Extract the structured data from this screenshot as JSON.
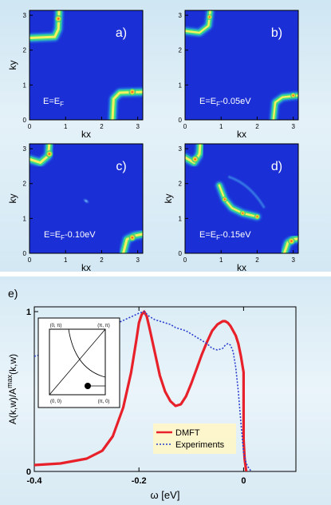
{
  "colors": {
    "panel_fill": "#1a2fd6",
    "dmft_line": "#e8202a",
    "exp_line": "#2b3fd0"
  },
  "chart_data": [
    {
      "type": "heatmap",
      "panel_label": "a)",
      "energy_label": {
        "base": "E=E",
        "sub": "F",
        "rest": ""
      },
      "xlabel": "kx",
      "ylabel": "ky",
      "xlim": [
        0,
        3.14
      ],
      "ylim": [
        0,
        3.14
      ],
      "xticks": [
        "0",
        "1",
        "2",
        "3"
      ],
      "yticks": [
        "0",
        "1",
        "2",
        "3"
      ]
    },
    {
      "type": "heatmap",
      "panel_label": "b)",
      "energy_label": {
        "base": "E=E",
        "sub": "F",
        "rest": "-0.05eV"
      },
      "xlabel": "kx",
      "ylabel": "",
      "xlim": [
        0,
        3.14
      ],
      "ylim": [
        0,
        3.14
      ],
      "xticks": [
        "0",
        "1",
        "2",
        "3"
      ],
      "yticks": [
        "0",
        "1",
        "2",
        "3"
      ]
    },
    {
      "type": "heatmap",
      "panel_label": "c)",
      "energy_label": {
        "base": "E=E",
        "sub": "F",
        "rest": "-0.10eV"
      },
      "xlabel": "kx",
      "ylabel": "ky",
      "xlim": [
        0,
        3.14
      ],
      "ylim": [
        0,
        3.14
      ],
      "xticks": [
        "0",
        "1",
        "2",
        "3"
      ],
      "yticks": [
        "0",
        "1",
        "2",
        "3"
      ]
    },
    {
      "type": "heatmap",
      "panel_label": "d)",
      "energy_label": {
        "base": "E=E",
        "sub": "F",
        "rest": "-0.15eV"
      },
      "xlabel": "kx",
      "ylabel": "ky",
      "xlim": [
        0,
        3.14
      ],
      "ylim": [
        0,
        3.14
      ],
      "xticks": [
        "0",
        "1",
        "2",
        "3"
      ],
      "yticks": [
        "0",
        "1",
        "2",
        "3"
      ]
    },
    {
      "type": "line",
      "panel_label": "e)",
      "xlabel": "ω [eV]",
      "ylabel": {
        "base": "A(k,w)/A",
        "sup": "max",
        "rest": "(k,w)"
      },
      "xlim": [
        -0.4,
        0.1
      ],
      "ylim": [
        0,
        1
      ],
      "xticks": [
        -0.4,
        -0.2,
        0
      ],
      "xtick_labels": [
        "-0.4",
        "-0.2",
        "0"
      ],
      "yticks": [
        0,
        1
      ],
      "ytick_labels": [
        "0",
        "1"
      ],
      "legend_position": "bottom-right",
      "series": [
        {
          "name": "DMFT",
          "style": "solid",
          "x": [
            -0.4,
            -0.35,
            -0.3,
            -0.27,
            -0.25,
            -0.23,
            -0.215,
            -0.205,
            -0.2,
            -0.195,
            -0.19,
            -0.185,
            -0.18,
            -0.17,
            -0.16,
            -0.15,
            -0.14,
            -0.13,
            -0.12,
            -0.11,
            -0.1,
            -0.09,
            -0.08,
            -0.07,
            -0.06,
            -0.05,
            -0.04,
            -0.035,
            -0.03,
            -0.025,
            -0.02,
            -0.015,
            -0.01,
            -0.005,
            0.0,
            0.0,
            0.002,
            0.005
          ],
          "y": [
            0.04,
            0.05,
            0.08,
            0.13,
            0.22,
            0.4,
            0.62,
            0.82,
            0.93,
            0.98,
            1.0,
            0.97,
            0.9,
            0.75,
            0.6,
            0.5,
            0.44,
            0.41,
            0.42,
            0.47,
            0.55,
            0.64,
            0.73,
            0.81,
            0.88,
            0.92,
            0.94,
            0.94,
            0.93,
            0.91,
            0.88,
            0.85,
            0.8,
            0.72,
            0.62,
            0.2,
            0.08,
            0.0
          ]
        },
        {
          "name": "Experiments",
          "style": "dotted",
          "x": [
            -0.4,
            -0.38,
            -0.35,
            -0.33,
            -0.3,
            -0.28,
            -0.26,
            -0.24,
            -0.22,
            -0.2,
            -0.19,
            -0.18,
            -0.17,
            -0.16,
            -0.15,
            -0.14,
            -0.13,
            -0.12,
            -0.11,
            -0.1,
            -0.09,
            -0.08,
            -0.07,
            -0.06,
            -0.05,
            -0.04,
            -0.035,
            -0.03,
            -0.025,
            -0.02,
            -0.015,
            -0.01,
            -0.005,
            0.0,
            0.005,
            0.01,
            0.015
          ],
          "y": [
            0.72,
            0.74,
            0.78,
            0.8,
            0.84,
            0.87,
            0.9,
            0.93,
            0.96,
            0.99,
            1.0,
            0.97,
            0.95,
            0.94,
            0.93,
            0.92,
            0.9,
            0.89,
            0.88,
            0.86,
            0.84,
            0.82,
            0.8,
            0.77,
            0.76,
            0.77,
            0.79,
            0.8,
            0.79,
            0.75,
            0.65,
            0.5,
            0.3,
            0.12,
            0.05,
            0.02,
            0.0
          ]
        }
      ],
      "inset": {
        "corner_labels": [
          "(0, π)",
          "(π, π)",
          "(0, 0)",
          "(π, 0)"
        ]
      }
    }
  ]
}
